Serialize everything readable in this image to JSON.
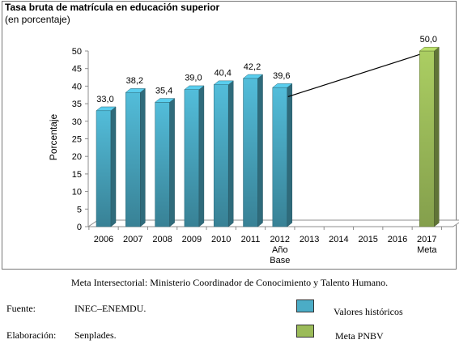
{
  "chart_data": {
    "type": "bar",
    "title": "Tasa bruta de matrícula en educación superior",
    "subtitle": "(en porcentaje)",
    "ylabel": "Porcentaje",
    "xlabel": "",
    "ylim": [
      0,
      50
    ],
    "yticks": [
      0,
      5,
      10,
      15,
      20,
      25,
      30,
      35,
      40,
      45,
      50
    ],
    "categories": [
      "2006",
      "2007",
      "2008",
      "2009",
      "2010",
      "2011",
      "2012",
      "2013",
      "2014",
      "2015",
      "2016",
      "2017"
    ],
    "category_sublabels": {
      "2012": [
        "Año",
        "Base"
      ],
      "2017": [
        "Meta"
      ]
    },
    "series": [
      {
        "name": "Valores históricos",
        "color": "#4bacc6",
        "values": [
          33.0,
          38.2,
          35.4,
          39.0,
          40.4,
          42.2,
          39.6,
          null,
          null,
          null,
          null,
          null
        ],
        "labels": [
          "33,0",
          "38,2",
          "35,4",
          "39,0",
          "40,4",
          "42,2",
          "39,6",
          "",
          "",
          "",
          "",
          ""
        ]
      },
      {
        "name": "Meta PNBV",
        "color": "#9bbb59",
        "values": [
          null,
          null,
          null,
          null,
          null,
          null,
          null,
          null,
          null,
          null,
          null,
          50.0
        ],
        "labels": [
          "",
          "",
          "",
          "",
          "",
          "",
          "",
          "",
          "",
          "",
          "",
          "50,0"
        ]
      }
    ],
    "trend_line": {
      "from_category": "2012",
      "to_category": "2017",
      "from_value": 37.0,
      "to_value": 49.0
    },
    "grid": false,
    "chart_style": "3d-bars"
  },
  "footer": {
    "note": "Meta Intersectorial: Ministerio Coordinador de Conocimiento y Talento Humano.",
    "fuente_label": "Fuente:",
    "fuente_value": "INEC–ENEMDU.",
    "elaboracion_label": "Elaboración:",
    "elaboracion_value": "Senplades."
  },
  "legend": {
    "historic_label": "Valores históricos",
    "meta_label": "Meta PNBV",
    "historic_color": "#4bacc6",
    "meta_color": "#9bbb59"
  }
}
